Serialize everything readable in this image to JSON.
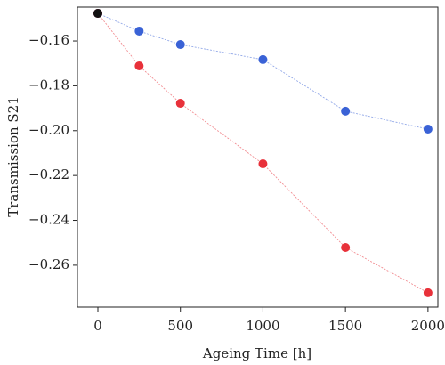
{
  "chart_data": {
    "type": "line",
    "xlabel": "Ageing Time [h]",
    "ylabel": "Transmission S21",
    "xlim": [
      -124,
      2060
    ],
    "ylim": [
      -0.2787,
      -0.1449
    ],
    "xticks": [
      0,
      500,
      1000,
      1500,
      2000
    ],
    "yticks": [
      {
        "value": -0.16,
        "label": "−0.16"
      },
      {
        "value": -0.18,
        "label": "−0.18"
      },
      {
        "value": -0.2,
        "label": "−0.20"
      },
      {
        "value": -0.22,
        "label": "−0.22"
      },
      {
        "value": -0.24,
        "label": "−0.24"
      },
      {
        "value": -0.26,
        "label": "−0.26"
      }
    ],
    "series": [
      {
        "color": "#3a62d6",
        "x": [
          0,
          250,
          500,
          1000,
          1500,
          2000
        ],
        "values": [
          -0.1477,
          -0.1556,
          -0.1616,
          -0.1683,
          -0.1913,
          -0.1993
        ]
      },
      {
        "color": "#e8313a",
        "x": [
          0,
          250,
          500,
          1000,
          1500,
          2000
        ],
        "values": [
          -0.1477,
          -0.1711,
          -0.1878,
          -0.2148,
          -0.2521,
          -0.2723
        ]
      },
      {
        "color": "#111111",
        "x": [
          0
        ],
        "values": [
          -0.1477
        ]
      }
    ]
  }
}
